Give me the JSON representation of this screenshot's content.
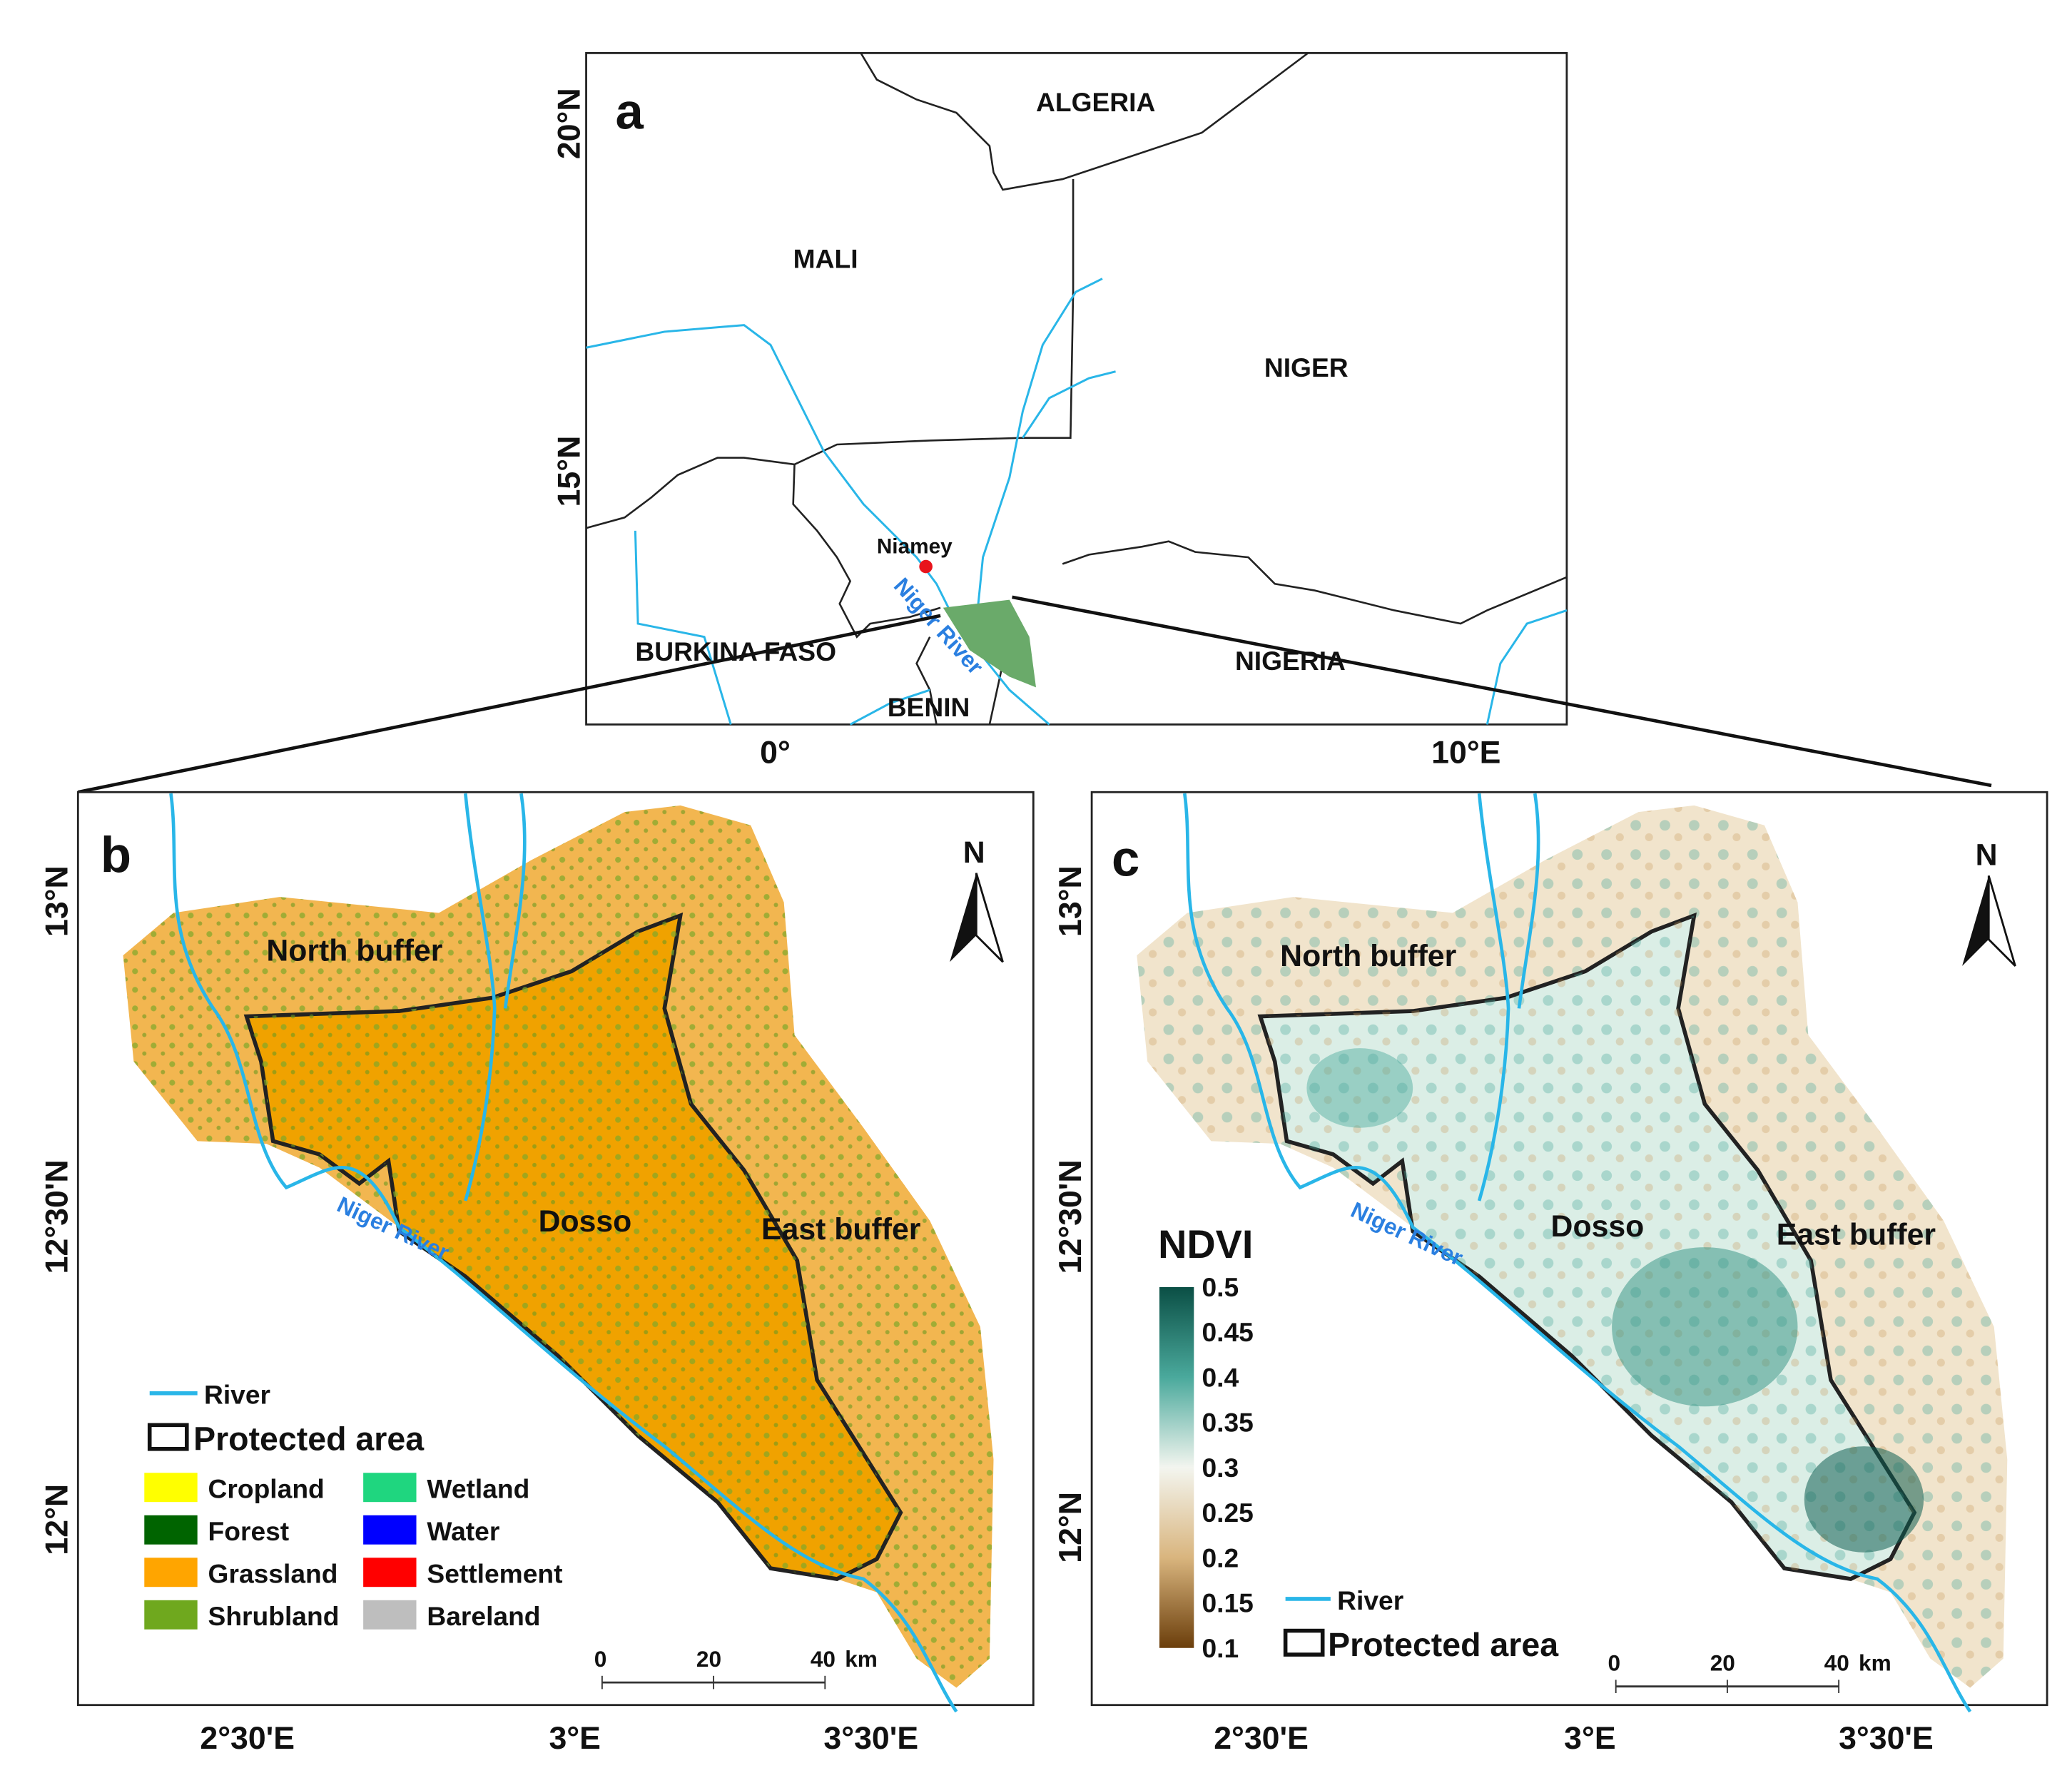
{
  "panel_a": {
    "label": "a",
    "countries": [
      "ALGERIA",
      "MALI",
      "NIGER",
      "BURKINA FASO",
      "NIGERIA",
      "BENIN"
    ],
    "city": "Niamey",
    "river_label": "Niger River",
    "lat_ticks": [
      "20°N",
      "15°N"
    ],
    "lon_ticks": [
      "0°",
      "10°E"
    ],
    "colors": {
      "river": "#29b6e8",
      "study_area": "#6aaa6a",
      "city": "#e8141c"
    }
  },
  "panel_b": {
    "label": "b",
    "north_arrow": "N",
    "regions": {
      "north": "North buffer",
      "dosso": "Dosso",
      "east": "East buffer"
    },
    "river_label": "Niger River",
    "lat_ticks": [
      "13°N",
      "12°30'N",
      "12°N"
    ],
    "lon_ticks": [
      "2°30'E",
      "3°E",
      "3°30'E"
    ],
    "legend": {
      "river": "River",
      "protected": "Protected area",
      "classes": [
        {
          "label": "Cropland",
          "color": "#ffff00"
        },
        {
          "label": "Wetland",
          "color": "#1fd67f"
        },
        {
          "label": "Forest",
          "color": "#006400"
        },
        {
          "label": "Water",
          "color": "#0000ff"
        },
        {
          "label": "Grassland",
          "color": "#ffa500"
        },
        {
          "label": "Settlement",
          "color": "#ff0000"
        },
        {
          "label": "Shrubland",
          "color": "#6fa81e"
        },
        {
          "label": "Bareland",
          "color": "#bebebe"
        }
      ]
    },
    "scale_bar": [
      "0",
      "20",
      "40",
      "km"
    ]
  },
  "panel_c": {
    "label": "c",
    "north_arrow": "N",
    "regions": {
      "north": "North buffer",
      "dosso": "Dosso",
      "east": "East buffer"
    },
    "river_label": "Niger River",
    "lat_ticks": [
      "13°N",
      "12°30'N",
      "12°N"
    ],
    "lon_ticks": [
      "2°30'E",
      "3°E",
      "3°30'E"
    ],
    "colorbar": {
      "title": "NDVI",
      "ticks": [
        "0.5",
        "0.45",
        "0.4",
        "0.35",
        "0.3",
        "0.25",
        "0.2",
        "0.15",
        "0.1"
      ],
      "range": [
        0.1,
        0.5
      ],
      "colors": {
        "high": "#0b4f45",
        "mid": "#f5f5f0",
        "low": "#6b3e0b"
      }
    },
    "legend": {
      "river": "River",
      "protected": "Protected area"
    },
    "scale_bar": [
      "0",
      "20",
      "40",
      "km"
    ]
  }
}
